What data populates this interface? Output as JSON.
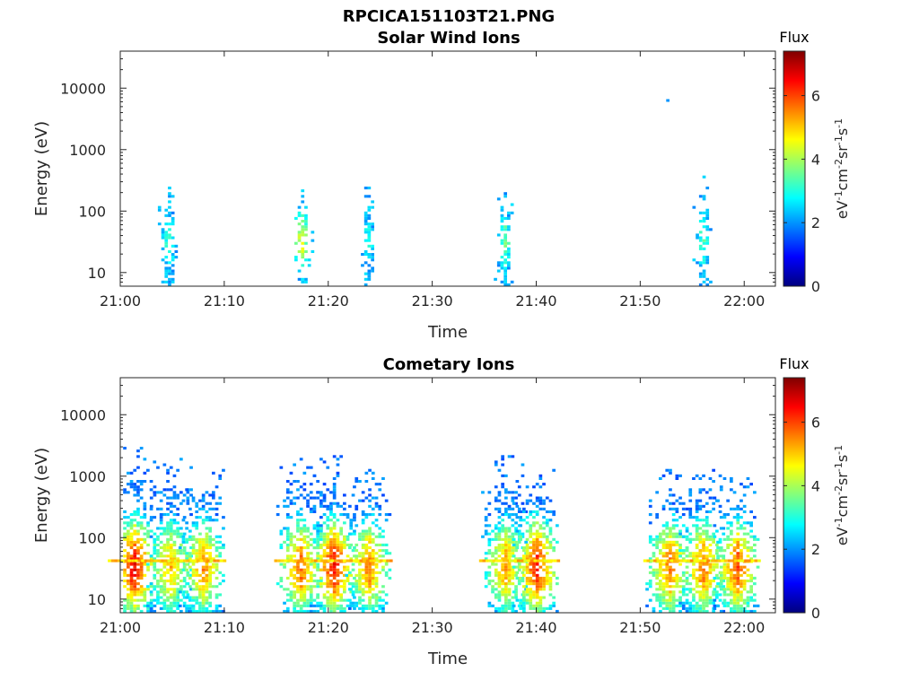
{
  "figure_title": "RPCICA151103T21.PNG",
  "colorbar_title": "Flux",
  "colorbar_unit_parts": [
    {
      "t": "eV",
      "sup": false
    },
    {
      "t": "-1",
      "sup": true
    },
    {
      "t": "cm",
      "sup": false
    },
    {
      "t": "-2",
      "sup": true
    },
    {
      "t": "sr",
      "sup": false
    },
    {
      "t": "-1",
      "sup": true
    },
    {
      "t": "s",
      "sup": false
    },
    {
      "t": "-1",
      "sup": true
    }
  ],
  "colorbar_ticks": [
    "0",
    "2",
    "4",
    "6"
  ],
  "colormap": "jet",
  "chart_data": [
    {
      "type": "heatmap",
      "title": "Solar Wind Ions",
      "xlabel": "Time",
      "ylabel": "Energy (eV)",
      "x_ticks": [
        "21:00",
        "21:10",
        "21:20",
        "21:30",
        "21:40",
        "21:50",
        "22:00"
      ],
      "y_ticks": [
        "10",
        "100",
        "1000",
        "10000"
      ],
      "y_scale": "log",
      "xlim_min": [
        0,
        63
      ],
      "ylim": [
        6,
        40000
      ],
      "clim": [
        0,
        7.4
      ],
      "bursts": [
        {
          "t": 4.5,
          "peak": 3.2,
          "emax": 230
        },
        {
          "t": 17.3,
          "peak": 4.4,
          "emax": 350
        },
        {
          "t": 23.7,
          "peak": 3.0,
          "emax": 250
        },
        {
          "t": 36.8,
          "peak": 3.6,
          "emax": 270
        },
        {
          "t": 55.9,
          "peak": 3.4,
          "emax": 420
        }
      ],
      "extra_points": [
        {
          "t": 52.5,
          "e": 6200,
          "v": 2.0
        }
      ]
    },
    {
      "type": "heatmap",
      "title": "Cometary Ions",
      "xlabel": "Time",
      "ylabel": "Energy (eV)",
      "x_ticks": [
        "21:00",
        "21:10",
        "21:20",
        "21:30",
        "21:40",
        "21:50",
        "22:00"
      ],
      "y_ticks": [
        "10",
        "100",
        "1000",
        "10000"
      ],
      "y_scale": "log",
      "xlim_min": [
        0,
        63
      ],
      "ylim": [
        6,
        40000
      ],
      "clim": [
        0,
        7.4
      ],
      "bursts": [
        {
          "t": 1.2,
          "peak": 6.6,
          "emax": 2800
        },
        {
          "t": 4.7,
          "peak": 5.2,
          "emax": 2000
        },
        {
          "t": 7.8,
          "peak": 5.6,
          "emax": 1300
        },
        {
          "t": 17.2,
          "peak": 5.8,
          "emax": 1800
        },
        {
          "t": 20.4,
          "peak": 6.5,
          "emax": 2000
        },
        {
          "t": 23.8,
          "peak": 5.6,
          "emax": 1300
        },
        {
          "t": 36.9,
          "peak": 5.4,
          "emax": 2100
        },
        {
          "t": 39.9,
          "peak": 6.4,
          "emax": 1200
        },
        {
          "t": 52.7,
          "peak": 5.8,
          "emax": 1200
        },
        {
          "t": 55.9,
          "peak": 5.8,
          "emax": 1200
        },
        {
          "t": 59.2,
          "peak": 6.0,
          "emax": 900
        }
      ],
      "extra_points": []
    }
  ]
}
